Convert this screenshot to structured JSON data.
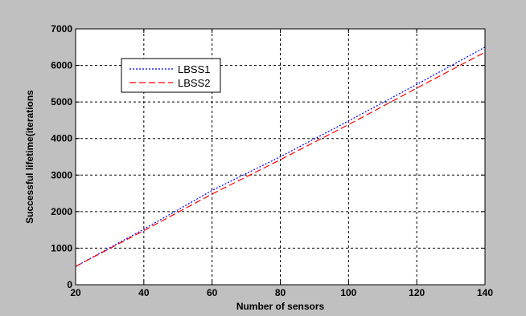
{
  "chart_data": {
    "type": "line",
    "title": "",
    "xlabel": "Number of sensors",
    "ylabel": "Successful lifetime(iterations",
    "xlim": [
      20,
      140
    ],
    "ylim": [
      0,
      7000
    ],
    "xticks": [
      20,
      40,
      60,
      80,
      100,
      120,
      140
    ],
    "yticks": [
      0,
      1000,
      2000,
      3000,
      4000,
      5000,
      6000,
      7000
    ],
    "x_tick_labels": [
      "20",
      "40",
      "60",
      "80",
      "100",
      "120",
      "140"
    ],
    "y_tick_labels": [
      "0",
      "1000",
      "2000",
      "3000",
      "4000",
      "5000",
      "6000",
      "7000"
    ],
    "grid": true,
    "legend_position": "top-left",
    "series": [
      {
        "name": "LBSS1",
        "color": "#0000ff",
        "line_style": "dotted",
        "x": [
          20,
          40,
          60,
          80,
          100,
          120,
          140
        ],
        "y": [
          500,
          1520,
          2580,
          3500,
          4480,
          5480,
          6500
        ]
      },
      {
        "name": "LBSS2",
        "color": "#ff0000",
        "line_style": "dashed",
        "x": [
          20,
          40,
          60,
          80,
          100,
          120,
          140
        ],
        "y": [
          500,
          1480,
          2480,
          3420,
          4380,
          5380,
          6360
        ]
      }
    ]
  },
  "colors": {
    "figure_background": "#c0c0c0",
    "plot_background": "#ffffff",
    "axis": "#000000",
    "grid": "#000000"
  }
}
